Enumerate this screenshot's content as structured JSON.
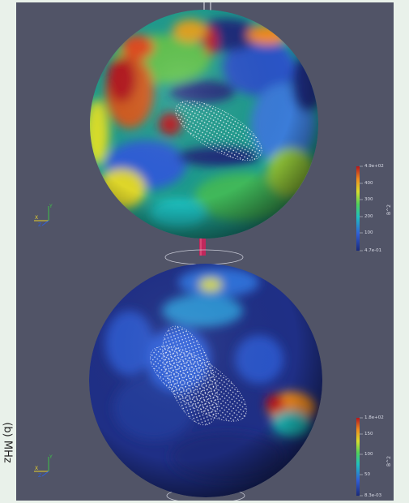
{
  "page_side_label": "(b) MHz",
  "colorbar_top": {
    "title": "B^2",
    "labels": [
      "4.9e+02",
      "400",
      "300",
      "200",
      "100",
      "4.7e-01"
    ]
  },
  "colorbar_bottom": {
    "title": "B^2",
    "labels": [
      "1.8e+02",
      "150",
      "100",
      "50",
      "8.3e-03"
    ]
  },
  "axes_triad": {
    "x": "X",
    "y": "Y",
    "z": "Z"
  },
  "colors": {
    "background": "#515467",
    "rod": "#c0285c",
    "page": "#e9f1ea"
  }
}
